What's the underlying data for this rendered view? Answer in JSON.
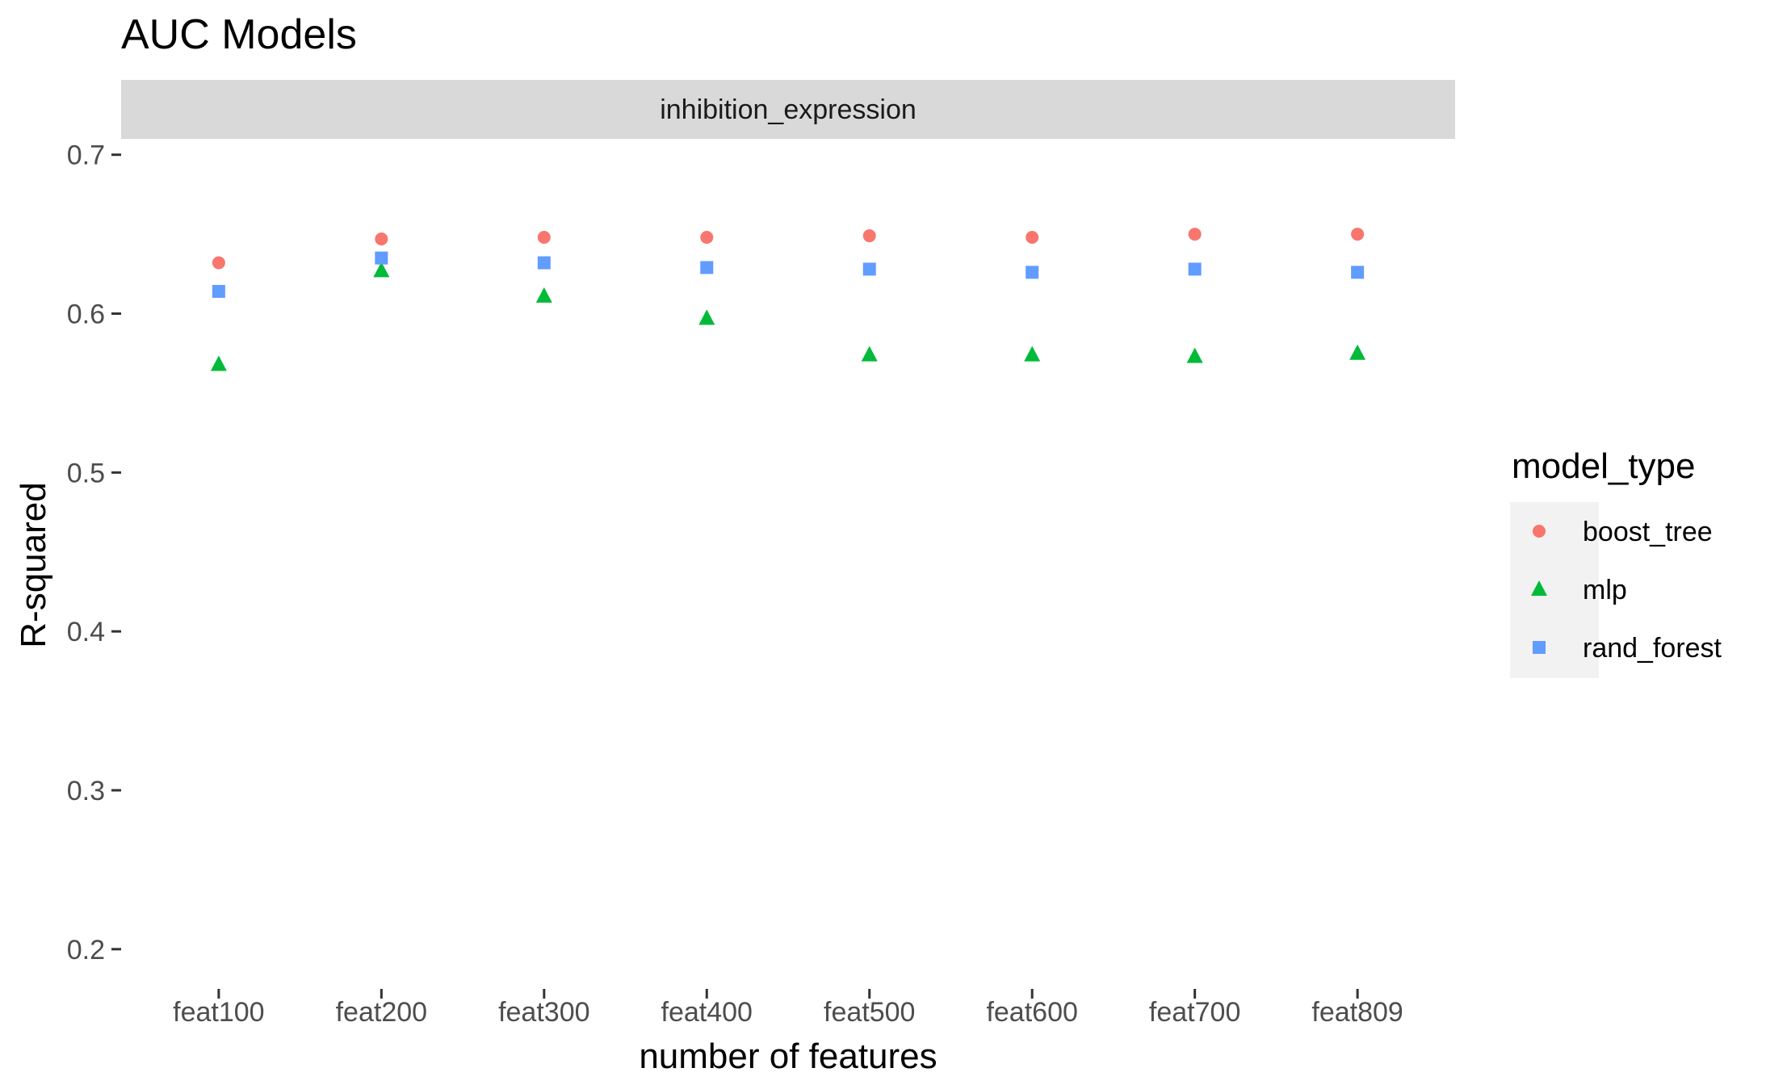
{
  "chart_data": {
    "type": "scatter",
    "title": "AUC Models",
    "facet_label": "inhibition_expression",
    "xlabel": "number of features",
    "ylabel": "R-squared",
    "categories": [
      "feat100",
      "feat200",
      "feat300",
      "feat400",
      "feat500",
      "feat600",
      "feat700",
      "feat809"
    ],
    "yticks": [
      "0.2",
      "0.3",
      "0.4",
      "0.5",
      "0.6",
      "0.7"
    ],
    "ylim": [
      0.175,
      0.71
    ],
    "grid": false,
    "legend": {
      "title": "model_type",
      "position": "right"
    },
    "series": [
      {
        "name": "boost_tree",
        "color": "#F8766D",
        "shape": "circle",
        "values": [
          0.632,
          0.647,
          0.648,
          0.648,
          0.649,
          0.648,
          0.65,
          0.65
        ]
      },
      {
        "name": "mlp",
        "color": "#00BA38",
        "shape": "triangle",
        "values": [
          0.568,
          0.627,
          0.611,
          0.597,
          0.574,
          0.574,
          0.573,
          0.575
        ]
      },
      {
        "name": "rand_forest",
        "color": "#619CFF",
        "shape": "square",
        "values": [
          0.614,
          0.635,
          0.632,
          0.629,
          0.628,
          0.626,
          0.628,
          0.626
        ]
      }
    ]
  }
}
